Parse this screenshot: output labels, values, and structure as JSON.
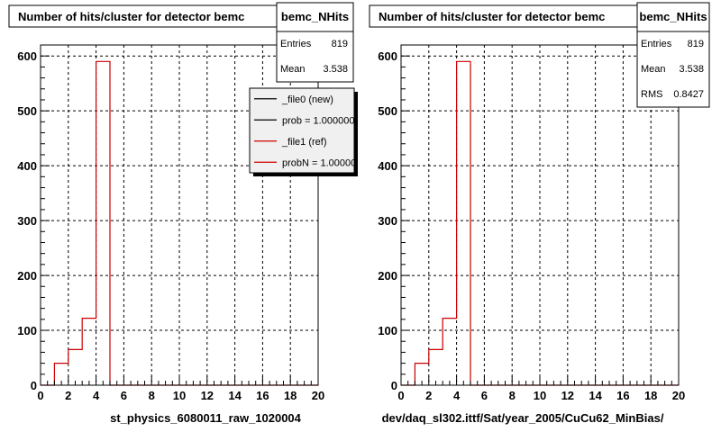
{
  "chart_data": [
    {
      "type": "bar",
      "title": "Number of hits/cluster for detector bemc",
      "caption": "st_physics_6080011_raw_1020004",
      "xlim": [
        0,
        20
      ],
      "ylim": [
        0,
        620
      ],
      "x_ticks": [
        "0",
        "2",
        "4",
        "6",
        "8",
        "10",
        "12",
        "14",
        "16",
        "18",
        "20"
      ],
      "y_ticks": [
        "0",
        "100",
        "200",
        "300",
        "400",
        "500",
        "600"
      ],
      "grid": true,
      "bin_edges": [
        0,
        1,
        2,
        3,
        4,
        5,
        6,
        7,
        8,
        9,
        10,
        11,
        12,
        13,
        14,
        15,
        16,
        17,
        18,
        19,
        20
      ],
      "series": [
        {
          "name": "_file1 (ref)",
          "color": "#cc0000",
          "values": [
            0,
            40,
            65,
            122,
            590,
            0,
            0,
            0,
            0,
            0,
            0,
            0,
            0,
            0,
            0,
            0,
            0,
            0,
            0,
            0
          ]
        }
      ],
      "stats": {
        "name": "bemc_NHits",
        "rows": [
          [
            "Entries",
            "819"
          ],
          [
            "Mean",
            "3.538"
          ]
        ]
      },
      "legend": {
        "placement": "top-right",
        "entries": [
          {
            "label": "_file0 (new)",
            "color": "#000000"
          },
          {
            "label": "prob = 1.000000",
            "color": "#000000"
          },
          {
            "label": "_file1 (ref)",
            "color": "#cc0000"
          },
          {
            "label": "probN = 1.000000",
            "color": "#cc0000"
          }
        ]
      }
    },
    {
      "type": "bar",
      "title": "Number of hits/cluster for detector bemc",
      "caption": "dev/daq_sl302.ittf/Sat/year_2005/CuCu62_MinBias/",
      "xlim": [
        0,
        20
      ],
      "ylim": [
        0,
        620
      ],
      "x_ticks": [
        "0",
        "2",
        "4",
        "6",
        "8",
        "10",
        "12",
        "14",
        "16",
        "18",
        "20"
      ],
      "y_ticks": [
        "0",
        "100",
        "200",
        "300",
        "400",
        "500",
        "600"
      ],
      "grid": true,
      "bin_edges": [
        0,
        1,
        2,
        3,
        4,
        5,
        6,
        7,
        8,
        9,
        10,
        11,
        12,
        13,
        14,
        15,
        16,
        17,
        18,
        19,
        20
      ],
      "series": [
        {
          "name": "bemc_NHits",
          "color": "#cc0000",
          "values": [
            0,
            40,
            65,
            122,
            590,
            0,
            0,
            0,
            0,
            0,
            0,
            0,
            0,
            0,
            0,
            0,
            0,
            0,
            0,
            0
          ]
        }
      ],
      "stats": {
        "name": "bemc_NHits",
        "rows": [
          [
            "Entries",
            "819"
          ],
          [
            "Mean",
            "3.538"
          ],
          [
            "RMS",
            "0.8427"
          ]
        ]
      }
    }
  ]
}
